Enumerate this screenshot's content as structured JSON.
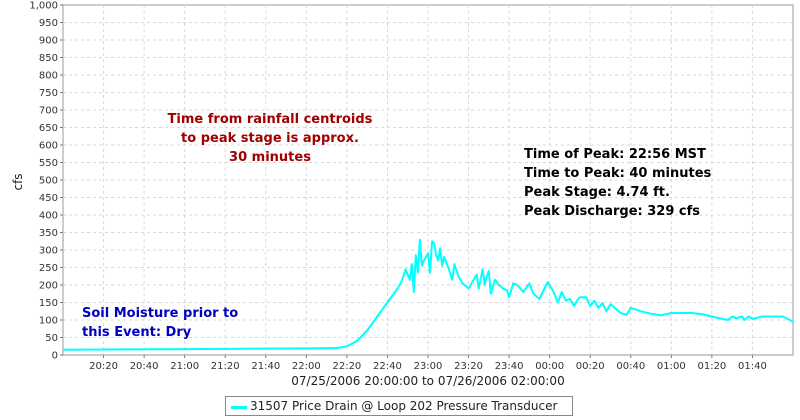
{
  "chart_data": {
    "type": "line",
    "title": "",
    "ylabel": "cfs",
    "xlabel": "07/25/2006 20:00:00 to 07/26/2006 02:00:00",
    "ylim": [
      0,
      1000
    ],
    "xlim": [
      "20:00",
      "02:00"
    ],
    "grid": true,
    "y_ticks": [
      "0",
      "50",
      "100",
      "150",
      "200",
      "250",
      "300",
      "350",
      "400",
      "450",
      "500",
      "550",
      "600",
      "650",
      "700",
      "750",
      "800",
      "850",
      "900",
      "950",
      "1,000"
    ],
    "x_ticks": [
      "20:20",
      "20:40",
      "21:00",
      "21:20",
      "21:40",
      "22:00",
      "22:20",
      "22:40",
      "23:00",
      "23:20",
      "23:40",
      "00:00",
      "00:20",
      "00:40",
      "01:00",
      "01:20",
      "01:40"
    ],
    "series": [
      {
        "name": "31507 Price Drain @ Loop 202 Pressure Transducer",
        "color": "#00ffff",
        "points": [
          [
            "20:00",
            15
          ],
          [
            "20:30",
            16
          ],
          [
            "21:00",
            17
          ],
          [
            "21:30",
            18
          ],
          [
            "22:00",
            19
          ],
          [
            "22:15",
            20
          ],
          [
            "22:20",
            25
          ],
          [
            "22:25",
            40
          ],
          [
            "22:30",
            70
          ],
          [
            "22:35",
            110
          ],
          [
            "22:40",
            150
          ],
          [
            "22:45",
            190
          ],
          [
            "22:47",
            210
          ],
          [
            "22:49",
            245
          ],
          [
            "22:50",
            230
          ],
          [
            "22:51",
            215
          ],
          [
            "22:52",
            260
          ],
          [
            "22:53",
            180
          ],
          [
            "22:54",
            285
          ],
          [
            "22:55",
            235
          ],
          [
            "22:56",
            329
          ],
          [
            "22:57",
            255
          ],
          [
            "22:58",
            270
          ],
          [
            "23:00",
            290
          ],
          [
            "23:01",
            235
          ],
          [
            "23:02",
            325
          ],
          [
            "23:03",
            320
          ],
          [
            "23:04",
            285
          ],
          [
            "23:05",
            270
          ],
          [
            "23:06",
            305
          ],
          [
            "23:07",
            255
          ],
          [
            "23:08",
            280
          ],
          [
            "23:10",
            250
          ],
          [
            "23:12",
            215
          ],
          [
            "23:13",
            260
          ],
          [
            "23:15",
            225
          ],
          [
            "23:17",
            205
          ],
          [
            "23:20",
            190
          ],
          [
            "23:22",
            210
          ],
          [
            "23:24",
            230
          ],
          [
            "23:25",
            190
          ],
          [
            "23:27",
            245
          ],
          [
            "23:28",
            200
          ],
          [
            "23:29",
            225
          ],
          [
            "23:30",
            240
          ],
          [
            "23:31",
            175
          ],
          [
            "23:33",
            215
          ],
          [
            "23:35",
            200
          ],
          [
            "23:37",
            190
          ],
          [
            "23:39",
            185
          ],
          [
            "23:40",
            165
          ],
          [
            "23:42",
            205
          ],
          [
            "23:44",
            200
          ],
          [
            "23:47",
            180
          ],
          [
            "23:50",
            205
          ],
          [
            "23:52",
            175
          ],
          [
            "23:55",
            160
          ],
          [
            "23:57",
            185
          ],
          [
            "23:59",
            208
          ],
          [
            "00:02",
            180
          ],
          [
            "00:04",
            150
          ],
          [
            "00:06",
            180
          ],
          [
            "00:08",
            155
          ],
          [
            "00:10",
            160
          ],
          [
            "00:12",
            140
          ],
          [
            "00:14",
            160
          ],
          [
            "00:15",
            165
          ],
          [
            "00:18",
            165
          ],
          [
            "00:20",
            140
          ],
          [
            "00:22",
            155
          ],
          [
            "00:24",
            135
          ],
          [
            "00:26",
            148
          ],
          [
            "00:28",
            125
          ],
          [
            "00:30",
            145
          ],
          [
            "00:33",
            130
          ],
          [
            "00:35",
            120
          ],
          [
            "00:38",
            115
          ],
          [
            "00:40",
            135
          ],
          [
            "00:45",
            125
          ],
          [
            "00:50",
            118
          ],
          [
            "00:55",
            113
          ],
          [
            "01:00",
            120
          ],
          [
            "01:05",
            120
          ],
          [
            "01:10",
            120
          ],
          [
            "01:15",
            117
          ],
          [
            "01:20",
            110
          ],
          [
            "01:25",
            103
          ],
          [
            "01:28",
            100
          ],
          [
            "01:30",
            110
          ],
          [
            "01:32",
            105
          ],
          [
            "01:35",
            110
          ],
          [
            "01:36",
            100
          ],
          [
            "01:38",
            110
          ],
          [
            "01:40",
            103
          ],
          [
            "01:45",
            110
          ],
          [
            "01:50",
            110
          ],
          [
            "01:55",
            110
          ],
          [
            "02:00",
            95
          ]
        ]
      }
    ],
    "annotations": {
      "lag_note": [
        "Time from rainfall centroids",
        "to peak stage is approx.",
        "30 minutes"
      ],
      "peak_info": [
        "Time of Peak: 22:56 MST",
        "Time to Peak: 40 minutes",
        "Peak Stage: 4.74 ft.",
        "Peak Discharge: 329 cfs"
      ],
      "soil_note": [
        "Soil Moisture prior to",
        "this Event: Dry"
      ]
    },
    "annotation_colors": {
      "lag_note": "#a00000",
      "peak_info": "#000000",
      "soil_note": "#0000c0"
    },
    "legend": {
      "placement": "bottom-center",
      "label": "31507 Price Drain @ Loop 202 Pressure Transducer"
    }
  }
}
